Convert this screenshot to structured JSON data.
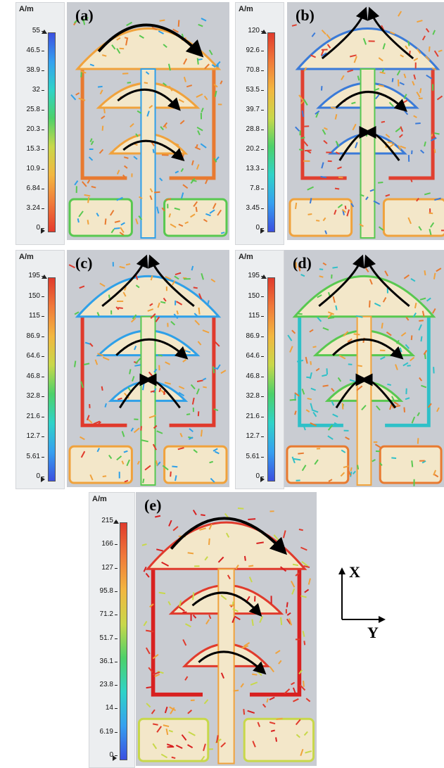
{
  "unit": "A/m",
  "panels": [
    {
      "label": "(a)",
      "ticks": [
        "55",
        "46.5",
        "38.9",
        "32",
        "25.8",
        "20.3",
        "15.3",
        "10.9",
        "6.84",
        "3.24",
        "0"
      ],
      "gradient": "linear-gradient(to bottom,#3b4fe0,#35a0f0,#2fd3c8,#4cd16a,#c8d84a,#f2b740,#f07a3a,#e53a2c)",
      "current": [
        "#f0a23c",
        "#e87a30",
        "#2fa0e8",
        "#58c850"
      ]
    },
    {
      "label": "(b)",
      "ticks": [
        "120",
        "92.6",
        "70.8",
        "53.5",
        "39.7",
        "28.8",
        "20.2",
        "13.3",
        "7.8",
        "3.45",
        "0"
      ],
      "gradient": "linear-gradient(to bottom,#e03a2c,#f07a3a,#f2b740,#c8d84a,#4cd16a,#2fd3c8,#35a0f0,#3b4fe0)",
      "current": [
        "#3a7ad8",
        "#e04030",
        "#58c850",
        "#f0a23c"
      ]
    },
    {
      "label": "(c)",
      "ticks": [
        "195",
        "150",
        "115",
        "86.9",
        "64.6",
        "46.8",
        "32.8",
        "21.6",
        "12.7",
        "5.61",
        "0"
      ],
      "gradient": "linear-gradient(to bottom,#e03a2c,#f07a3a,#f2b740,#c8d84a,#4cd16a,#2fd3c8,#35a0f0,#3b4fe0)",
      "current": [
        "#2fa0e8",
        "#e03a2c",
        "#58c850",
        "#f0a23c"
      ]
    },
    {
      "label": "(d)",
      "ticks": [
        "195",
        "150",
        "115",
        "86.9",
        "64.6",
        "46.8",
        "32.8",
        "21.6",
        "12.7",
        "5.61",
        "0"
      ],
      "gradient": "linear-gradient(to bottom,#e03a2c,#f07a3a,#f2b740,#c8d84a,#4cd16a,#2fd3c8,#35a0f0,#3b4fe0)",
      "current": [
        "#58c850",
        "#2fc0c8",
        "#f0a23c",
        "#e87a30"
      ]
    },
    {
      "label": "(e)",
      "ticks": [
        "215",
        "166",
        "127",
        "95.8",
        "71.2",
        "51.7",
        "36.1",
        "23.8",
        "14",
        "6.19",
        "0"
      ],
      "gradient": "linear-gradient(to bottom,#e03a2c,#f07a3a,#f2b740,#c8d84a,#4cd16a,#2fd3c8,#35a0f0,#3b4fe0)",
      "current": [
        "#e03a2c",
        "#d82020",
        "#f0a23c",
        "#c8d84a"
      ]
    }
  ],
  "axes": {
    "x": "X",
    "y": "Y"
  }
}
